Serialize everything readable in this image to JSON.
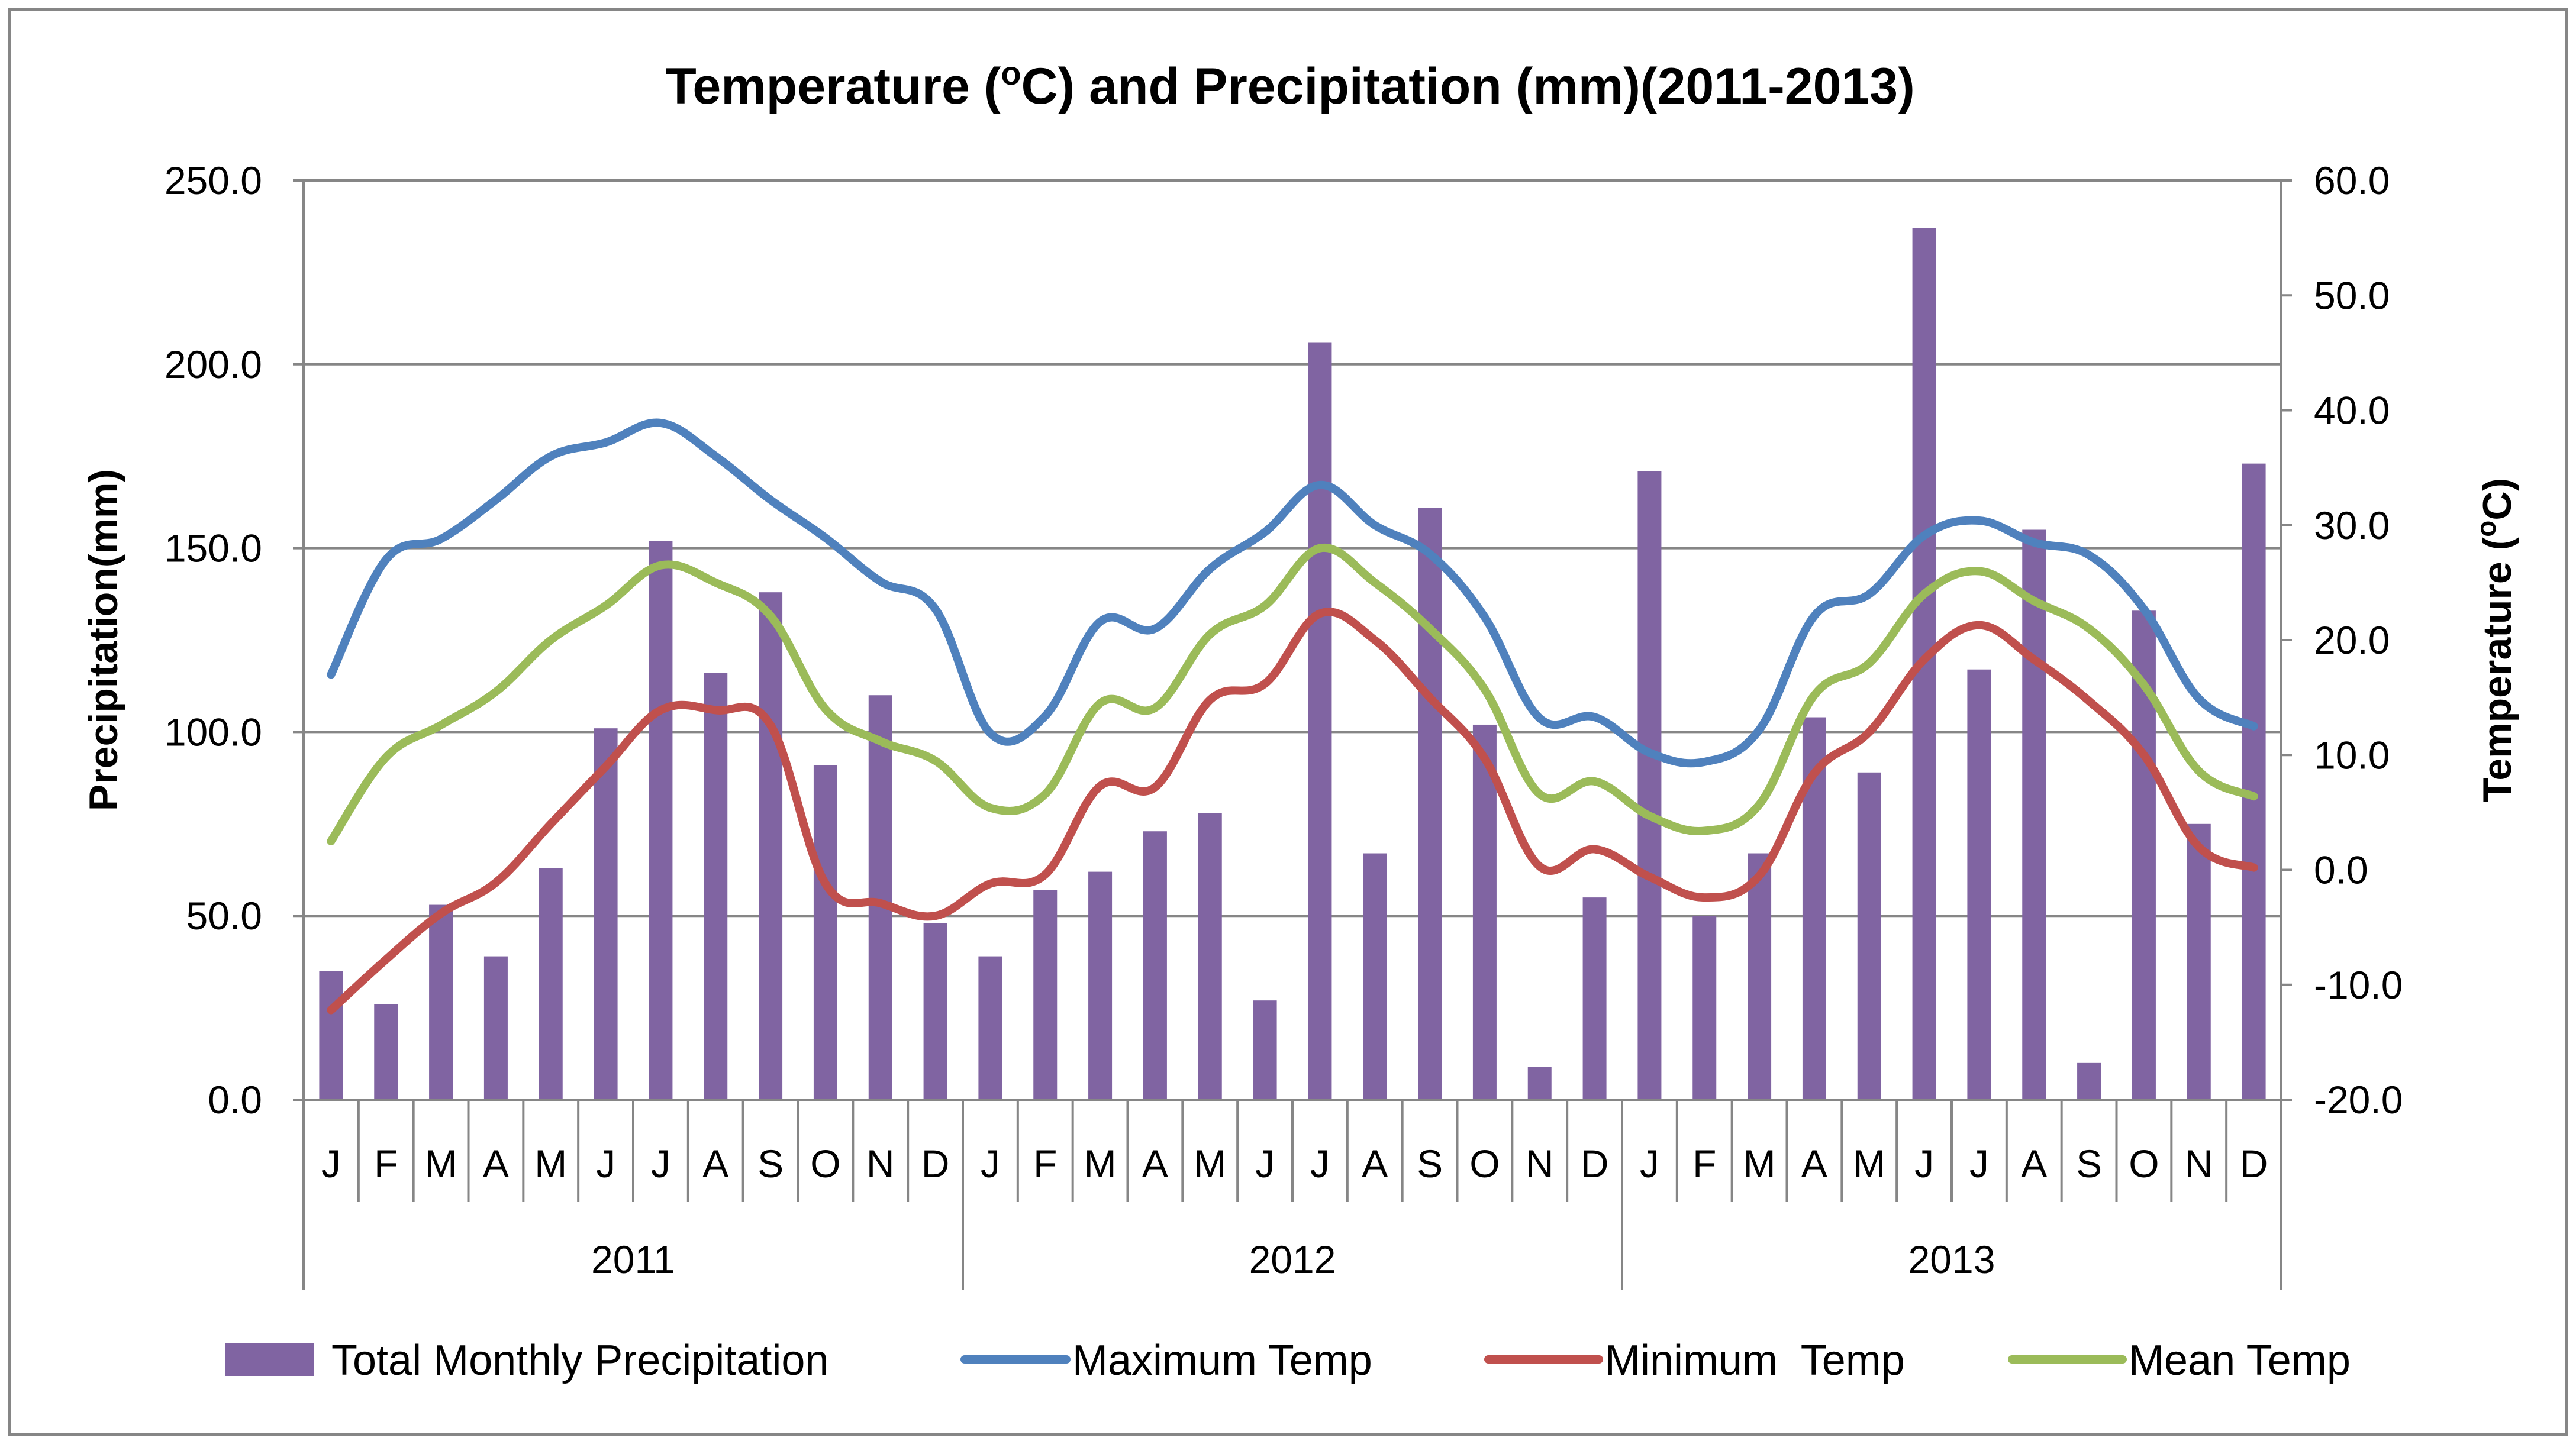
{
  "chart_data": {
    "type": "bar+line",
    "title": "Temperature (oC) and Precipitation (mm)(2011-2013)",
    "title_parts": {
      "before": "Temperature (",
      "sup": "o",
      "after": "C) and Precipitation (mm)(2011-2013)"
    },
    "ylabel_left": "Precipitation(mm)",
    "ylabel_right_parts": {
      "before": "Temperature (",
      "sup": "o",
      "after": "C)"
    },
    "ylim_left": [
      0,
      250
    ],
    "ylim_right": [
      -20,
      60
    ],
    "yticks_left": [
      "0.0",
      "50.0",
      "100.0",
      "150.0",
      "200.0",
      "250.0"
    ],
    "yticks_right": [
      "-20.0",
      "-10.0",
      "0.0",
      "10.0",
      "20.0",
      "30.0",
      "40.0",
      "50.0",
      "60.0"
    ],
    "months": [
      "J",
      "F",
      "M",
      "A",
      "M",
      "J",
      "J",
      "A",
      "S",
      "O",
      "N",
      "D",
      "J",
      "F",
      "M",
      "A",
      "M",
      "J",
      "J",
      "A",
      "S",
      "O",
      "N",
      "D",
      "J",
      "F",
      "M",
      "A",
      "M",
      "J",
      "J",
      "A",
      "S",
      "O",
      "N",
      "D"
    ],
    "years": [
      "2011",
      "2012",
      "2013"
    ],
    "series": [
      {
        "name": "Total Monthly Precipitation",
        "kind": "bar",
        "axis": "left",
        "color": "#8064A2",
        "values": [
          35,
          26,
          53,
          39,
          63,
          101,
          152,
          116,
          138,
          91,
          110,
          48,
          39,
          57,
          62,
          73,
          78,
          27,
          206,
          67,
          161,
          102,
          9,
          55,
          171,
          50,
          67,
          104,
          89,
          237,
          117,
          155,
          10,
          133,
          75,
          173
        ]
      },
      {
        "name": "Maximum Temp",
        "kind": "line",
        "axis": "right",
        "color": "#4F81BD",
        "values": [
          17.0,
          27.0,
          28.8,
          32.2,
          36.0,
          37.2,
          38.9,
          36.0,
          32.2,
          28.9,
          25.1,
          22.7,
          11.9,
          13.4,
          21.6,
          21.0,
          26.2,
          29.4,
          33.5,
          30.0,
          27.5,
          22.0,
          13.2,
          13.3,
          10.2,
          9.4,
          12.2,
          22.1,
          24.0,
          29.1,
          30.4,
          28.5,
          27.4,
          22.7,
          14.9,
          12.5
        ]
      },
      {
        "name": "Minimum  Temp",
        "kind": "line",
        "axis": "right",
        "color": "#C0504D",
        "values": [
          -12.2,
          -7.8,
          -3.8,
          -1.1,
          4.0,
          9.0,
          13.9,
          13.9,
          12.6,
          -1.2,
          -2.9,
          -4.0,
          -1.2,
          -0.4,
          7.3,
          7.2,
          14.8,
          16.2,
          22.3,
          20.0,
          15.0,
          9.7,
          0.3,
          1.8,
          -0.6,
          -2.4,
          -0.5,
          8.4,
          12.0,
          18.3,
          21.3,
          18.3,
          14.7,
          10.0,
          2.0,
          0.2
        ]
      },
      {
        "name": "Mean Temp",
        "kind": "line",
        "axis": "right",
        "color": "#9BBB59",
        "values": [
          2.5,
          9.8,
          12.6,
          15.5,
          20.0,
          23.0,
          26.5,
          25.0,
          22.1,
          14.0,
          11.2,
          9.5,
          5.4,
          6.6,
          14.5,
          14.1,
          20.5,
          23.0,
          28.0,
          25.0,
          21.0,
          15.7,
          6.6,
          7.7,
          4.7,
          3.4,
          5.7,
          15.2,
          18.0,
          24.0,
          26.0,
          23.4,
          21.0,
          16.1,
          8.6,
          6.4
        ]
      }
    ],
    "legend": [
      "Total Monthly Precipitation",
      "Maximum Temp",
      "Minimum  Temp",
      "Mean Temp"
    ],
    "legend_position": "bottom",
    "grid": true
  }
}
